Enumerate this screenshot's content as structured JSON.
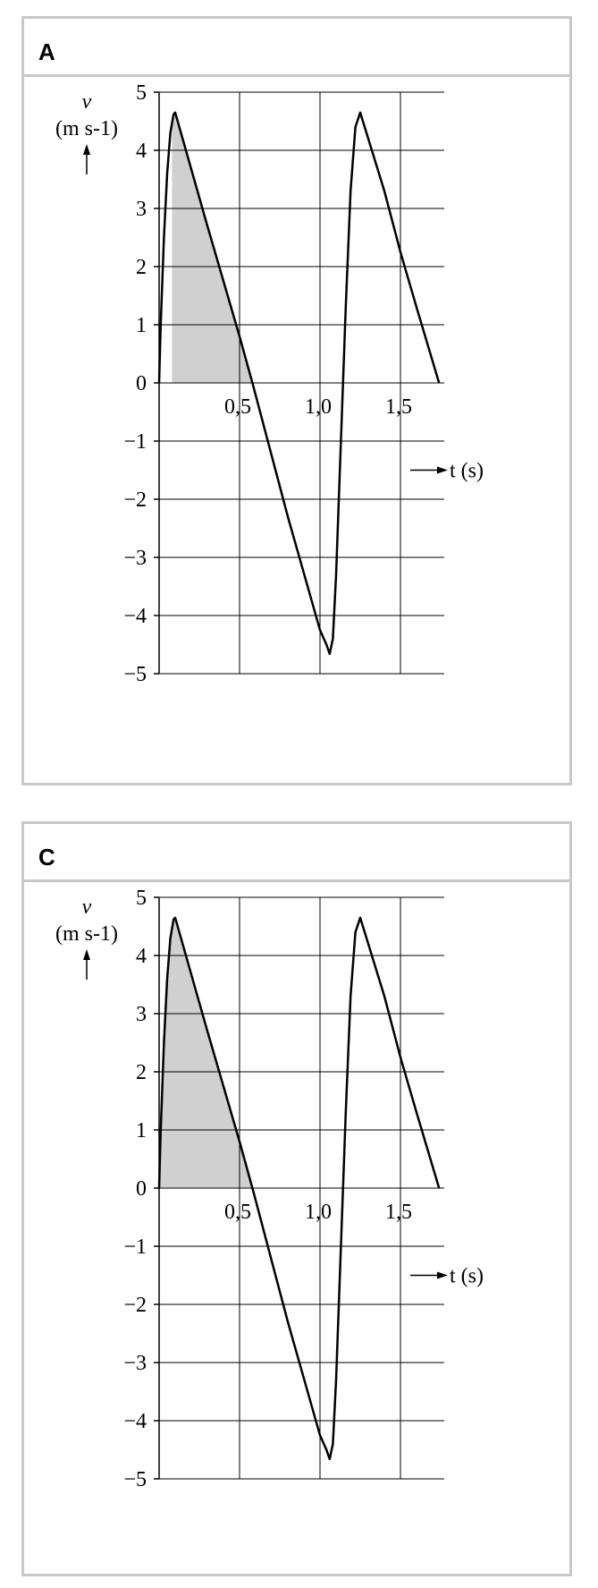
{
  "panels": [
    {
      "label": "A"
    },
    {
      "label": "C"
    }
  ],
  "chart_data": [
    {
      "type": "line",
      "panel": "A",
      "ylabel": "v",
      "yunit": "(m s-1)",
      "xlabel": "t (s)",
      "xlim": [
        0,
        1.75
      ],
      "ylim": [
        -5,
        5
      ],
      "xticks": [
        0.5,
        1.0,
        1.5
      ],
      "xtick_labels": [
        "0,5",
        "1,0",
        "1,5"
      ],
      "yticks": [
        5,
        4,
        3,
        2,
        1,
        0,
        -1,
        -2,
        -3,
        -4,
        -5
      ],
      "ytick_labels": [
        "5",
        "4",
        "3",
        "2",
        "1",
        "0",
        "−1",
        "−2",
        "−3",
        "−4",
        "−5"
      ],
      "grid": true,
      "series": [
        {
          "x": [
            0,
            0.01,
            0.03,
            0.05,
            0.07,
            0.09,
            0.1,
            0.3,
            0.5,
            0.58,
            0.8,
            1.0,
            1.04,
            1.06,
            1.08,
            1.1,
            1.13,
            1.16,
            1.19,
            1.22,
            1.25,
            1.4,
            1.5,
            1.6,
            1.74
          ],
          "y": [
            0,
            1.0,
            2.5,
            3.6,
            4.3,
            4.62,
            4.65,
            2.7,
            0.8,
            0,
            -2.3,
            -4.25,
            -4.5,
            -4.66,
            -4.4,
            -3.3,
            -1.0,
            1.3,
            3.3,
            4.4,
            4.65,
            3.3,
            2.25,
            1.3,
            0
          ]
        }
      ],
      "shaded_region": {
        "from_x": 0.08,
        "to_x": 0.58,
        "description": "shaded"
      }
    },
    {
      "type": "line",
      "panel": "C",
      "ylabel": "v",
      "yunit": "(m s-1)",
      "xlabel": "t (s)",
      "xlim": [
        0,
        1.75
      ],
      "ylim": [
        -5,
        5
      ],
      "xticks": [
        0.5,
        1.0,
        1.5
      ],
      "xtick_labels": [
        "0,5",
        "1,0",
        "1,5"
      ],
      "yticks": [
        5,
        4,
        3,
        2,
        1,
        0,
        -1,
        -2,
        -3,
        -4,
        -5
      ],
      "ytick_labels": [
        "5",
        "4",
        "3",
        "2",
        "1",
        "0",
        "−1",
        "−2",
        "−3",
        "−4",
        "−5"
      ],
      "grid": true,
      "series": [
        {
          "x": [
            0,
            0.01,
            0.03,
            0.05,
            0.07,
            0.09,
            0.1,
            0.3,
            0.5,
            0.58,
            0.8,
            1.0,
            1.04,
            1.06,
            1.08,
            1.1,
            1.13,
            1.16,
            1.19,
            1.22,
            1.25,
            1.4,
            1.5,
            1.6,
            1.74
          ],
          "y": [
            0,
            1.0,
            2.5,
            3.6,
            4.3,
            4.62,
            4.65,
            2.7,
            0.8,
            0,
            -2.3,
            -4.25,
            -4.5,
            -4.66,
            -4.4,
            -3.3,
            -1.0,
            1.3,
            3.3,
            4.4,
            4.65,
            3.3,
            2.25,
            1.3,
            0
          ]
        }
      ],
      "shaded_region": {
        "from_x": 0,
        "to_x": 0.58
      }
    }
  ]
}
